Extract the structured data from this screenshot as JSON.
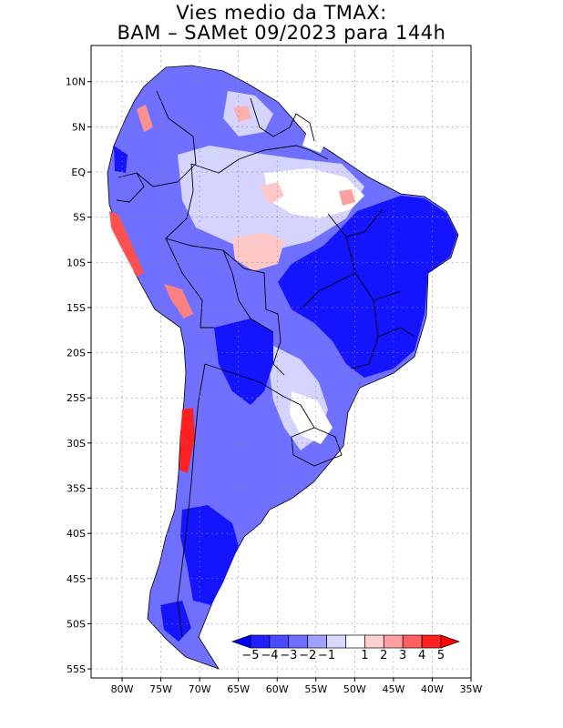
{
  "title": {
    "line1": "Vies medio da TMAX:",
    "line2": "BAM – SAMet 09/2023  para 144h"
  },
  "map": {
    "lat_range": [
      -56,
      14
    ],
    "lon_range": [
      -84,
      -35
    ],
    "lat_ticks": [
      "10N",
      "5N",
      "EQ",
      "5S",
      "10S",
      "15S",
      "20S",
      "25S",
      "30S",
      "35S",
      "40S",
      "45S",
      "50S",
      "55S"
    ],
    "lon_ticks": [
      "80W",
      "75W",
      "70W",
      "65W",
      "60W",
      "55W",
      "50W",
      "45W",
      "40W",
      "35W"
    ],
    "gridlines": "dotted"
  },
  "legend": {
    "labels": [
      "−5",
      "−4",
      "−3",
      "−2",
      "−1",
      "1",
      "2",
      "3",
      "4",
      "5"
    ],
    "colors": [
      "#2020ff",
      "#4a4aff",
      "#7070ff",
      "#a0a0ff",
      "#d8d8ff",
      "#ffffff",
      "#ffd0d0",
      "#ffa0a0",
      "#ff6060",
      "#ff2020"
    ],
    "arrow_left_color": "#0000ff",
    "arrow_right_color": "#ff0000"
  },
  "colors": {
    "land_base": "#6f70ff",
    "strong_negative": "#1010ff",
    "weak_negative": "#c8c8ff",
    "positive": "#ffb0b0",
    "strong_positive": "#ff3030",
    "border": "#000000"
  }
}
